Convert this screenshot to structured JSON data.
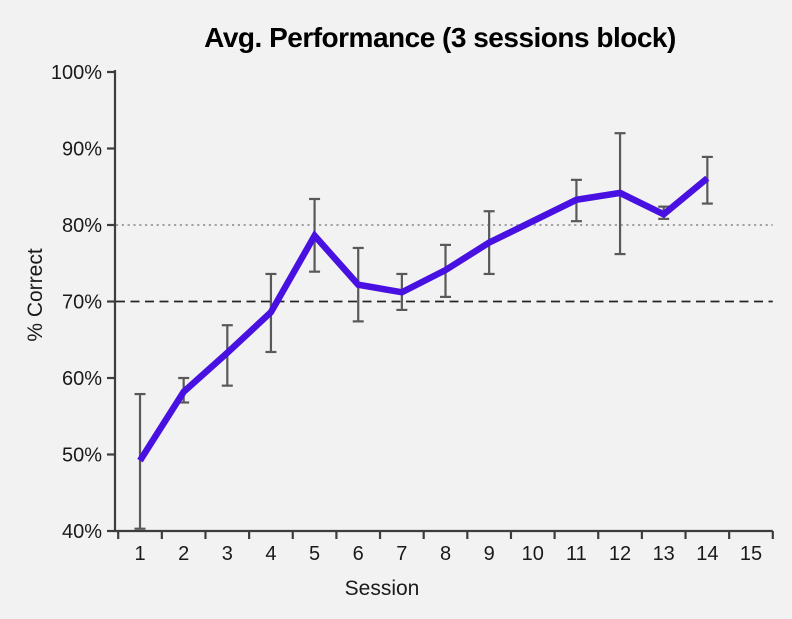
{
  "chart_data": {
    "type": "line",
    "title": "Avg. Performance (3 sessions block)",
    "xlabel": "Session",
    "ylabel": "% Correct",
    "x": [
      1,
      2,
      3,
      4,
      5,
      6,
      7,
      8,
      9,
      10,
      11,
      12,
      13,
      14
    ],
    "values": [
      49.2,
      58.2,
      63.3,
      68.6,
      78.6,
      72.2,
      71.2,
      74.1,
      77.7,
      80.5,
      83.3,
      84.2,
      81.4,
      86.1
    ],
    "error_low": [
      40.3,
      56.8,
      59.0,
      63.4,
      73.9,
      67.4,
      68.9,
      70.6,
      73.6,
      null,
      80.5,
      76.2,
      80.8,
      82.8
    ],
    "error_high": [
      57.9,
      60.0,
      66.9,
      73.6,
      83.4,
      77.0,
      73.6,
      77.4,
      81.8,
      null,
      85.9,
      92.0,
      82.4,
      88.9
    ],
    "x_ticks": [
      1,
      2,
      3,
      4,
      5,
      6,
      7,
      8,
      9,
      10,
      11,
      12,
      13,
      14,
      15
    ],
    "y_ticks": [
      {
        "value": 100,
        "label": "100%"
      },
      {
        "value": 90,
        "label": "90%"
      },
      {
        "value": 80,
        "label": "80%"
      },
      {
        "value": 70,
        "label": "70%"
      },
      {
        "value": 60,
        "label": "60%"
      },
      {
        "value": 50,
        "label": "50%"
      },
      {
        "value": 40,
        "label": "40%"
      }
    ],
    "ylim": [
      40,
      100
    ],
    "xlim": [
      1,
      15
    ],
    "grid": false,
    "legend": false,
    "reference_lines": [
      {
        "value": 80,
        "style": "dotted",
        "color": "#a3a3a3"
      },
      {
        "value": 70,
        "style": "dashed",
        "color": "#262626"
      }
    ],
    "colors": {
      "line": "#4811E2",
      "error_bar": "#595959",
      "axis": "#3d3d3d",
      "text": "#1a1a1a",
      "background": "#f2f2f2"
    }
  }
}
